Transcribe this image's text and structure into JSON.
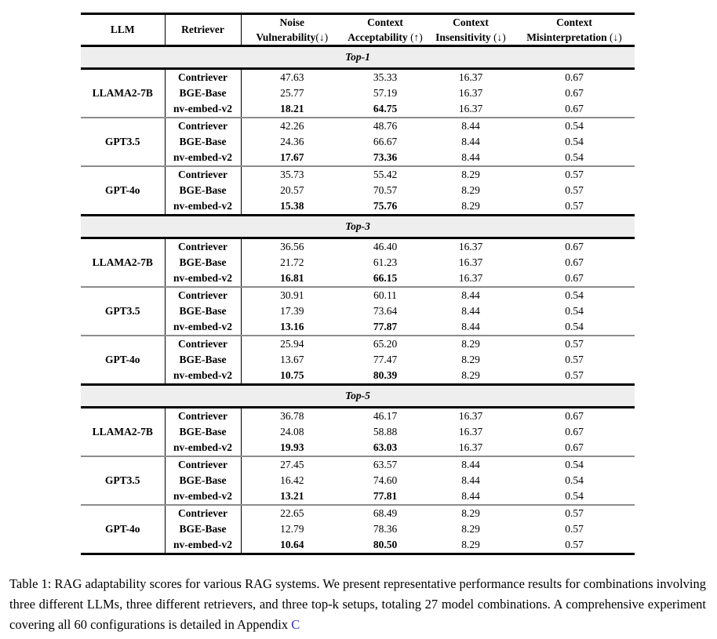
{
  "colors": {
    "band_bg": "#eeeeee",
    "group_rule": "#8c8c8c",
    "link": "#3333cc",
    "rule": "#000000"
  },
  "table": {
    "headers": [
      {
        "label": "LLM"
      },
      {
        "label": "Retriever"
      },
      {
        "line1": "Noise",
        "line2": "Vulnerability",
        "arrow": "(↓)"
      },
      {
        "line1": "Context",
        "line2": "Acceptability",
        "arrow": " (↑)"
      },
      {
        "line1": "Context",
        "line2": "Insensitivity",
        "arrow": " (↓)"
      },
      {
        "line1": "Context",
        "line2": "Misinterpretation",
        "arrow": " (↓)"
      }
    ],
    "sections": [
      {
        "title": "Top-1",
        "groups": [
          {
            "llm": "LLAMA2-7B",
            "rows": [
              {
                "retriever": "Contriever",
                "values": [
                  "47.63",
                  "35.33",
                  "16.37",
                  "0.67"
                ],
                "bold_values": [
                  false,
                  false,
                  false,
                  false
                ]
              },
              {
                "retriever": "BGE-Base",
                "values": [
                  "25.77",
                  "57.19",
                  "16.37",
                  "0.67"
                ],
                "bold_values": [
                  false,
                  false,
                  false,
                  false
                ]
              },
              {
                "retriever": "nv-embed-v2",
                "values": [
                  "18.21",
                  "64.75",
                  "16.37",
                  "0.67"
                ],
                "bold_values": [
                  true,
                  true,
                  false,
                  false
                ]
              }
            ]
          },
          {
            "llm": "GPT3.5",
            "rows": [
              {
                "retriever": "Contriever",
                "values": [
                  "42.26",
                  "48.76",
                  "8.44",
                  "0.54"
                ],
                "bold_values": [
                  false,
                  false,
                  false,
                  false
                ]
              },
              {
                "retriever": "BGE-Base",
                "values": [
                  "24.36",
                  "66.67",
                  "8.44",
                  "0.54"
                ],
                "bold_values": [
                  false,
                  false,
                  false,
                  false
                ]
              },
              {
                "retriever": "nv-embed-v2",
                "values": [
                  "17.67",
                  "73.36",
                  "8.44",
                  "0.54"
                ],
                "bold_values": [
                  true,
                  true,
                  false,
                  false
                ]
              }
            ]
          },
          {
            "llm": "GPT-4o",
            "rows": [
              {
                "retriever": "Contriever",
                "values": [
                  "35.73",
                  "55.42",
                  "8.29",
                  "0.57"
                ],
                "bold_values": [
                  false,
                  false,
                  false,
                  false
                ]
              },
              {
                "retriever": "BGE-Base",
                "values": [
                  "20.57",
                  "70.57",
                  "8.29",
                  "0.57"
                ],
                "bold_values": [
                  false,
                  false,
                  false,
                  false
                ]
              },
              {
                "retriever": "nv-embed-v2",
                "values": [
                  "15.38",
                  "75.76",
                  "8.29",
                  "0.57"
                ],
                "bold_values": [
                  true,
                  true,
                  false,
                  false
                ]
              }
            ]
          }
        ]
      },
      {
        "title": "Top-3",
        "groups": [
          {
            "llm": "LLAMA2-7B",
            "rows": [
              {
                "retriever": "Contriever",
                "values": [
                  "36.56",
                  "46.40",
                  "16.37",
                  "0.67"
                ],
                "bold_values": [
                  false,
                  false,
                  false,
                  false
                ]
              },
              {
                "retriever": "BGE-Base",
                "values": [
                  "21.72",
                  "61.23",
                  "16.37",
                  "0.67"
                ],
                "bold_values": [
                  false,
                  false,
                  false,
                  false
                ]
              },
              {
                "retriever": "nv-embed-v2",
                "values": [
                  "16.81",
                  "66.15",
                  "16.37",
                  "0.67"
                ],
                "bold_values": [
                  true,
                  true,
                  false,
                  false
                ]
              }
            ]
          },
          {
            "llm": "GPT3.5",
            "rows": [
              {
                "retriever": "Contriever",
                "values": [
                  "30.91",
                  "60.11",
                  "8.44",
                  "0.54"
                ],
                "bold_values": [
                  false,
                  false,
                  false,
                  false
                ]
              },
              {
                "retriever": "BGE-Base",
                "values": [
                  "17.39",
                  "73.64",
                  "8.44",
                  "0.54"
                ],
                "bold_values": [
                  false,
                  false,
                  false,
                  false
                ]
              },
              {
                "retriever": "nv-embed-v2",
                "values": [
                  "13.16",
                  "77.87",
                  "8.44",
                  "0.54"
                ],
                "bold_values": [
                  true,
                  true,
                  false,
                  false
                ]
              }
            ]
          },
          {
            "llm": "GPT-4o",
            "rows": [
              {
                "retriever": "Contriever",
                "values": [
                  "25.94",
                  "65.20",
                  "8.29",
                  "0.57"
                ],
                "bold_values": [
                  false,
                  false,
                  false,
                  false
                ]
              },
              {
                "retriever": "BGE-Base",
                "values": [
                  "13.67",
                  "77.47",
                  "8.29",
                  "0.57"
                ],
                "bold_values": [
                  false,
                  false,
                  false,
                  false
                ]
              },
              {
                "retriever": "nv-embed-v2",
                "values": [
                  "10.75",
                  "80.39",
                  "8.29",
                  "0.57"
                ],
                "bold_values": [
                  true,
                  true,
                  false,
                  false
                ]
              }
            ]
          }
        ]
      },
      {
        "title": "Top-5",
        "groups": [
          {
            "llm": "LLAMA2-7B",
            "rows": [
              {
                "retriever": "Contriever",
                "values": [
                  "36.78",
                  "46.17",
                  "16.37",
                  "0.67"
                ],
                "bold_values": [
                  false,
                  false,
                  false,
                  false
                ]
              },
              {
                "retriever": "BGE-Base",
                "values": [
                  "24.08",
                  "58.88",
                  "16.37",
                  "0.67"
                ],
                "bold_values": [
                  false,
                  false,
                  false,
                  false
                ]
              },
              {
                "retriever": "nv-embed-v2",
                "values": [
                  "19.93",
                  "63.03",
                  "16.37",
                  "0.67"
                ],
                "bold_values": [
                  true,
                  true,
                  false,
                  false
                ]
              }
            ]
          },
          {
            "llm": "GPT3.5",
            "rows": [
              {
                "retriever": "Contriever",
                "values": [
                  "27.45",
                  "63.57",
                  "8.44",
                  "0.54"
                ],
                "bold_values": [
                  false,
                  false,
                  false,
                  false
                ]
              },
              {
                "retriever": "BGE-Base",
                "values": [
                  "16.42",
                  "74.60",
                  "8.44",
                  "0.54"
                ],
                "bold_values": [
                  false,
                  false,
                  false,
                  false
                ]
              },
              {
                "retriever": "nv-embed-v2",
                "values": [
                  "13.21",
                  "77.81",
                  "8.44",
                  "0.54"
                ],
                "bold_values": [
                  true,
                  true,
                  false,
                  false
                ]
              }
            ]
          },
          {
            "llm": "GPT-4o",
            "rows": [
              {
                "retriever": "Contriever",
                "values": [
                  "22.65",
                  "68.49",
                  "8.29",
                  "0.57"
                ],
                "bold_values": [
                  false,
                  false,
                  false,
                  false
                ]
              },
              {
                "retriever": "BGE-Base",
                "values": [
                  "12.79",
                  "78.36",
                  "8.29",
                  "0.57"
                ],
                "bold_values": [
                  false,
                  false,
                  false,
                  false
                ]
              },
              {
                "retriever": "nv-embed-v2",
                "values": [
                  "10.64",
                  "80.50",
                  "8.29",
                  "0.57"
                ],
                "bold_values": [
                  true,
                  true,
                  false,
                  false
                ]
              }
            ]
          }
        ]
      }
    ]
  },
  "caption": {
    "text": "Table 1: RAG adaptability scores for various RAG systems. We present representative performance results for combinations involving three different LLMs, three different retrievers, and three top-k setups, totaling 27 model combinations. A comprehensive experiment covering all 60 configurations is detailed in Appendix ",
    "link_text": "C"
  }
}
